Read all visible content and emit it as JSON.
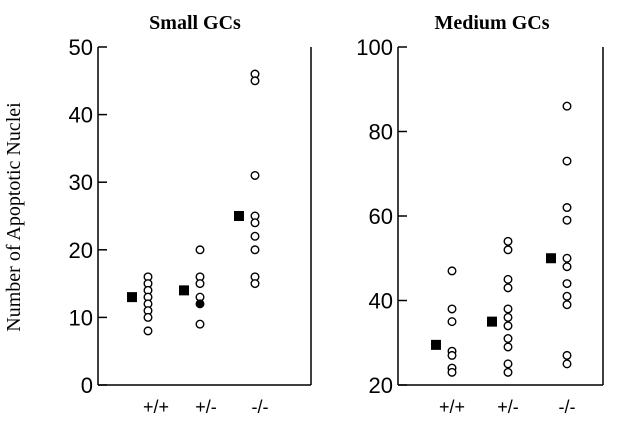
{
  "chart_data": [
    {
      "type": "scatter",
      "title": "Small GCs",
      "ylabel": "Number of Apoptotic Nuclei",
      "xlabel": "",
      "categories": [
        "+/+",
        "+/-",
        "-/-"
      ],
      "ylim": [
        0,
        50
      ],
      "yticks": [
        0,
        10,
        20,
        30,
        40,
        50
      ],
      "grid": false,
      "series": [
        {
          "marker": "open-circle",
          "values": [
            [
              16,
              15,
              14,
              13,
              12,
              11,
              10,
              8
            ],
            [
              20,
              16,
              15,
              13,
              9
            ],
            [
              46,
              45,
              31,
              25,
              24,
              22,
              20,
              16,
              15
            ]
          ]
        },
        {
          "marker": "filled-circle",
          "values": [
            [],
            [
              12
            ],
            []
          ]
        },
        {
          "marker": "filled-square",
          "values": [
            [
              13
            ],
            [
              14
            ],
            [
              25
            ]
          ]
        }
      ]
    },
    {
      "type": "scatter",
      "title": "Medium GCs",
      "ylabel": "",
      "xlabel": "",
      "categories": [
        "+/+",
        "+/-",
        "-/-"
      ],
      "ylim": [
        20,
        100
      ],
      "yticks": [
        20,
        40,
        60,
        80,
        100
      ],
      "grid": false,
      "series": [
        {
          "marker": "open-circle",
          "values": [
            [
              47,
              38,
              35,
              28,
              27,
              24,
              23
            ],
            [
              54,
              52,
              45,
              43,
              38,
              36,
              34,
              31,
              29,
              25,
              23
            ],
            [
              86,
              73,
              62,
              59,
              50,
              48,
              44,
              41,
              39,
              27,
              25
            ]
          ]
        },
        {
          "marker": "filled-square",
          "values": [
            [
              29.5
            ],
            [
              35
            ],
            [
              50
            ]
          ]
        }
      ]
    }
  ],
  "colors": {
    "ink": "#000000",
    "background": "#ffffff"
  }
}
